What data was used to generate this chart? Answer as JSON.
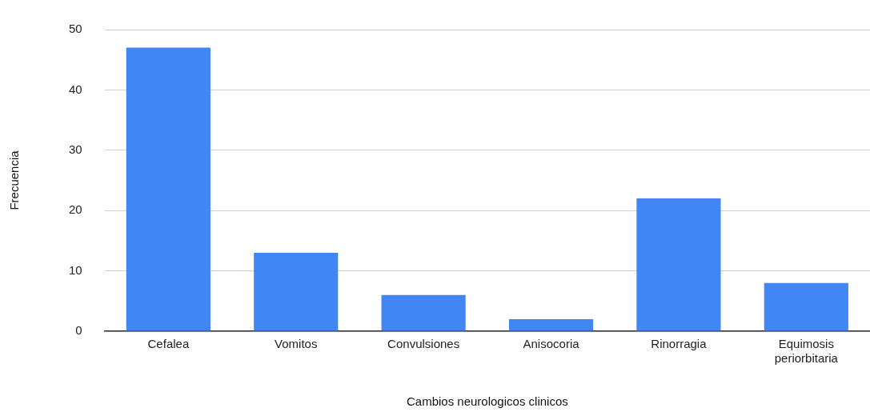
{
  "chart_data": {
    "type": "bar",
    "xlabel": "Cambios neurologicos clinicos",
    "ylabel": "Frecuencia",
    "categories": [
      "Cefalea",
      "Vomitos",
      "Convulsiones",
      "Anisocoria",
      "Rinorragia",
      "Equimosis periorbitaria"
    ],
    "values": [
      47,
      13,
      6,
      2,
      22,
      8
    ],
    "color": "#4285f4",
    "ylim": [
      0,
      50
    ],
    "yticks": [
      0,
      10,
      20,
      30,
      40,
      50
    ],
    "grid": "y",
    "legend": false
  }
}
